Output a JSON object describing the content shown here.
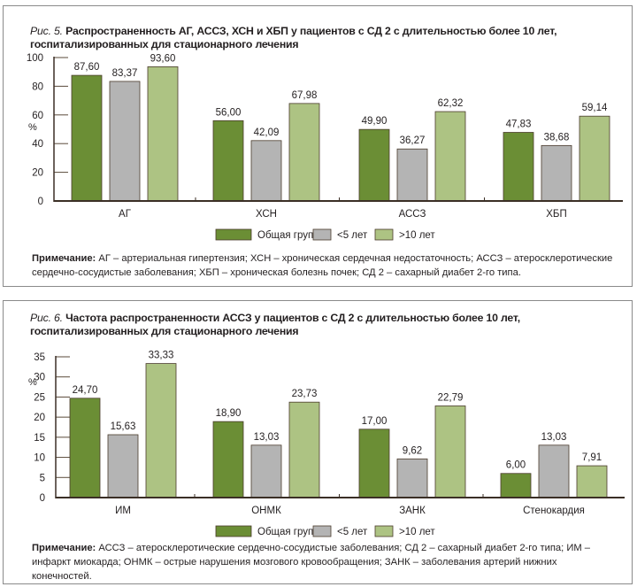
{
  "legend": [
    "Общая группа",
    "<5 лет",
    ">10 лет"
  ],
  "colors": {
    "Общая группа": "#6b8e35",
    "<5 лет": "#b4b4b4",
    ">10 лет": "#adc383",
    "axis": "#3b2f26",
    "frame": "#8a8a8a"
  },
  "chart_data": [
    {
      "type": "bar",
      "fig_label": "Рис. 5.",
      "title": "Распространенность АГ, АССЗ, ХСН и ХБП у пациентов с СД 2 с длительностью более 10 лет, госпитализированных для стационарного лечения",
      "ylabel": "%",
      "ylim": [
        0,
        100
      ],
      "yticks": [
        0,
        20,
        40,
        60,
        80,
        100
      ],
      "categories": [
        "АГ",
        "ХСН",
        "АССЗ",
        "ХБП"
      ],
      "series": [
        {
          "name": "Общая группа",
          "values": [
            87.6,
            56.0,
            49.9,
            47.83
          ],
          "labels": [
            "87,60",
            "56,00",
            "49,90",
            "47,83"
          ]
        },
        {
          "name": "<5 лет",
          "values": [
            83.37,
            42.09,
            36.27,
            38.68
          ],
          "labels": [
            "83,37",
            "42,09",
            "36,27",
            "38,68"
          ]
        },
        {
          "name": ">10 лет",
          "values": [
            93.6,
            67.98,
            62.32,
            59.14
          ],
          "labels": [
            "93,60",
            "67,98",
            "62,32",
            "59,14"
          ]
        }
      ],
      "legend_position": "bottom",
      "grid": false,
      "note_label": "Примечание:",
      "note": "АГ – артериальная гипертензия; ХСН – хроническая сердечная недостаточность; АССЗ – атеросклеротические сердечно-сосудистые заболевания; ХБП – хроническая болезнь почек; СД 2 – сахарный диабет 2-го типа."
    },
    {
      "type": "bar",
      "fig_label": "Рис. 6.",
      "title": "Частота распространенности АССЗ у пациентов с СД 2 с длительностью более 10 лет, госпитализированных для стационарного лечения",
      "ylabel": "%",
      "ylim": [
        0,
        35
      ],
      "yticks": [
        0,
        5,
        10,
        15,
        20,
        25,
        30,
        35
      ],
      "categories": [
        "ИМ",
        "ОНМК",
        "ЗАНК",
        "Стенокардия"
      ],
      "series": [
        {
          "name": "Общая группа",
          "values": [
            24.7,
            18.9,
            17.0,
            6.0
          ],
          "labels": [
            "24,70",
            "18,90",
            "17,00",
            "6,00"
          ]
        },
        {
          "name": "<5 лет",
          "values": [
            15.63,
            13.03,
            9.62,
            13.03
          ],
          "labels": [
            "15,63",
            "13,03",
            "9,62",
            "13,03"
          ]
        },
        {
          "name": ">10 лет",
          "values": [
            33.33,
            23.73,
            22.79,
            7.91
          ],
          "labels": [
            "33,33",
            "23,73",
            "22,79",
            "7,91"
          ]
        }
      ],
      "legend_position": "bottom",
      "grid": false,
      "note_label": "Примечание:",
      "note": "АССЗ – атеросклеротические сердечно-сосудистые заболевания; СД 2 – сахарный диабет 2-го типа; ИМ – инфаркт миокарда; ОНМК – острые нарушения мозгового кровообращения; ЗАНК – заболевания артерий нижних конечностей."
    }
  ]
}
